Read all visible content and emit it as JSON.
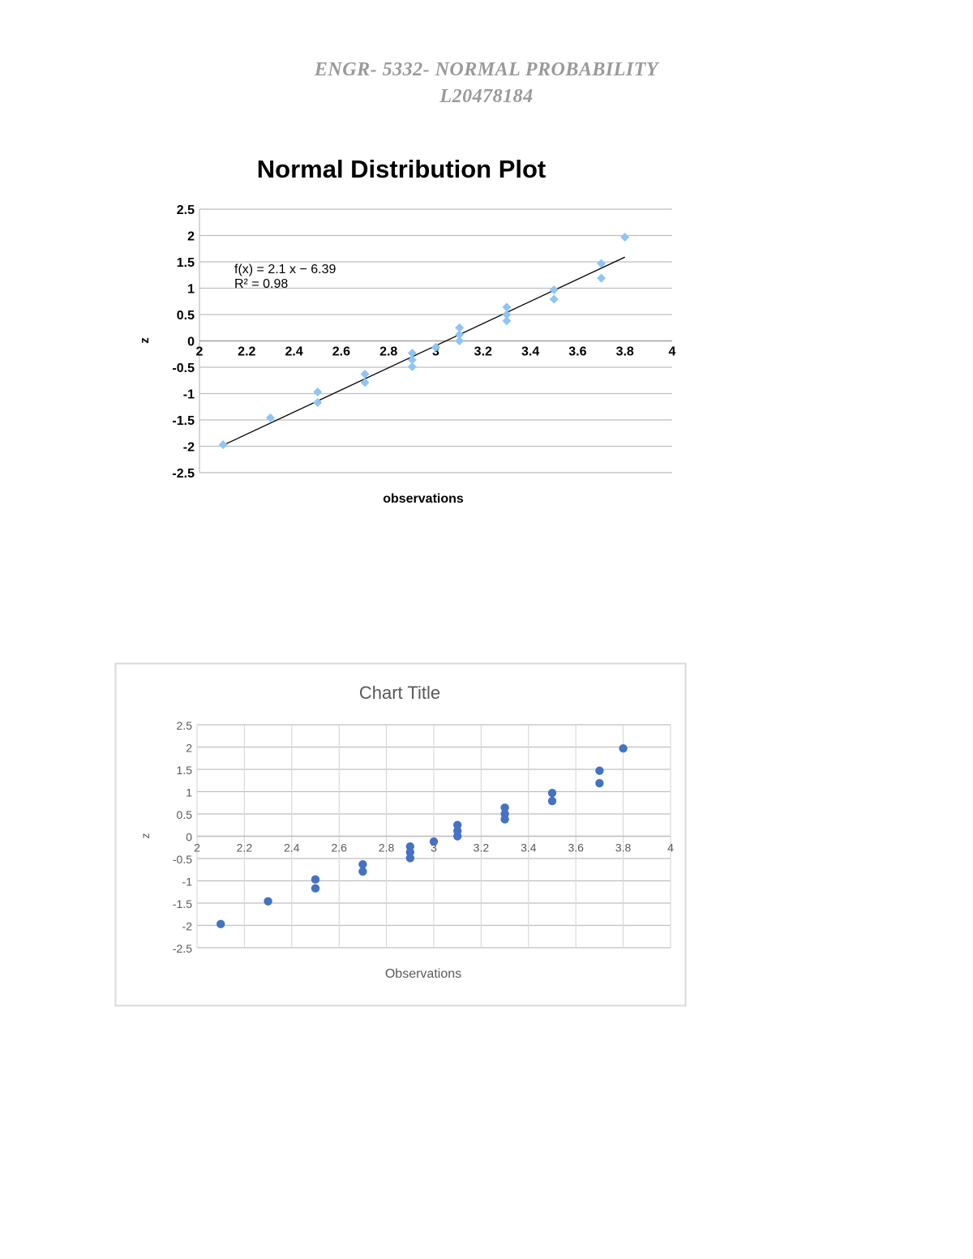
{
  "header": {
    "line1": "ENGR- 5332- NORMAL PROBABILITY",
    "line2": "L20478184"
  },
  "colors": {
    "chart1_marker": "#8ec5f5",
    "chart2_marker": "#4472c4",
    "trendline": "#000000",
    "gridline": "#bfbfbf",
    "header_text": "#9a9a9a"
  },
  "chart_data": [
    {
      "type": "scatter",
      "title": "Normal Distribution Plot",
      "xlabel": "observations",
      "ylabel": "z",
      "xlim": [
        2,
        4
      ],
      "ylim": [
        -2.5,
        2.5
      ],
      "x_ticks": [
        "2",
        "2.2",
        "2.4",
        "2.6",
        "2.8",
        "3",
        "3.2",
        "3.4",
        "3.6",
        "3.8",
        "4"
      ],
      "y_ticks": [
        "2.5",
        "2",
        "1.5",
        "1",
        "0.5",
        "0",
        "-0.5",
        "-1",
        "-1.5",
        "-2",
        "-2.5"
      ],
      "marker": "diamond",
      "grid": "horizontal",
      "series": [
        {
          "x": [
            2.1,
            2.3,
            2.5,
            2.5,
            2.7,
            2.7,
            2.9,
            2.9,
            2.9,
            3.0,
            3.1,
            3.1,
            3.1,
            3.3,
            3.3,
            3.3,
            3.5,
            3.5,
            3.7,
            3.7,
            3.8
          ],
          "y": [
            -1.97,
            -1.46,
            -0.97,
            -1.17,
            -0.63,
            -0.79,
            -0.23,
            -0.36,
            -0.49,
            -0.12,
            0.25,
            0.12,
            0.0,
            0.64,
            0.5,
            0.38,
            0.97,
            0.79,
            1.47,
            1.19,
            1.97
          ]
        }
      ],
      "trendline": {
        "slope": 2.1,
        "intercept": -6.39,
        "x_range": [
          2.1,
          3.8
        ],
        "equation": "f(x) = 2.1 x − 6.39",
        "r2_label": "R² = 0.98"
      }
    },
    {
      "type": "scatter",
      "title": "Chart Title",
      "xlabel": "Observations",
      "ylabel": "z",
      "xlim": [
        2,
        4
      ],
      "ylim": [
        -2.5,
        2.5
      ],
      "x_ticks": [
        "2",
        "2.2",
        "2.4",
        "2.6",
        "2.8",
        "3",
        "3.2",
        "3.4",
        "3.6",
        "3.8",
        "4"
      ],
      "y_ticks": [
        "2.5",
        "2",
        "1.5",
        "1",
        "0.5",
        "0",
        "-0.5",
        "-1",
        "-1.5",
        "-2",
        "-2.5"
      ],
      "marker": "circle",
      "grid": "both",
      "series": [
        {
          "x": [
            2.1,
            2.3,
            2.5,
            2.5,
            2.7,
            2.7,
            2.9,
            2.9,
            2.9,
            3.0,
            3.1,
            3.1,
            3.1,
            3.3,
            3.3,
            3.3,
            3.5,
            3.5,
            3.7,
            3.7,
            3.8
          ],
          "y": [
            -1.97,
            -1.46,
            -0.97,
            -1.17,
            -0.63,
            -0.79,
            -0.23,
            -0.36,
            -0.49,
            -0.12,
            0.25,
            0.12,
            0.0,
            0.64,
            0.5,
            0.38,
            0.97,
            0.79,
            1.47,
            1.19,
            1.97
          ]
        }
      ]
    }
  ]
}
